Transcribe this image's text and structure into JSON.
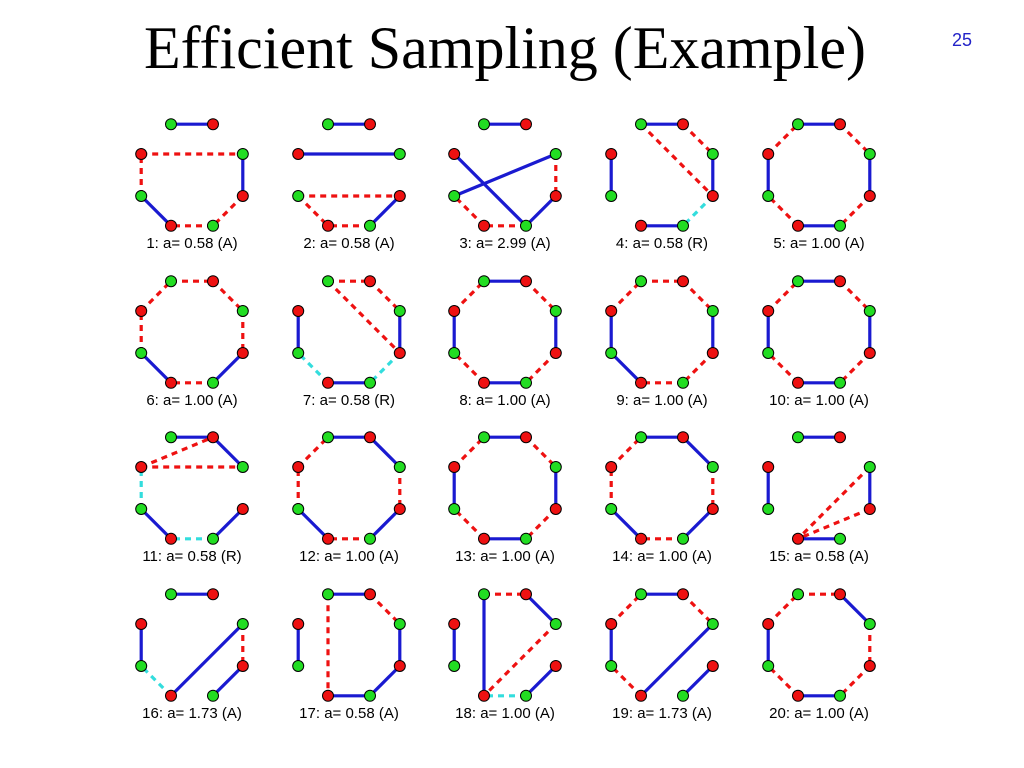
{
  "slide": {
    "title": "Efficient Sampling (Example)",
    "page_number": "25"
  },
  "colors": {
    "node_green": "#22dd22",
    "node_red": "#ee1111",
    "edge_solid": "#1a1ad0",
    "edge_dashed_red": "#ee1111",
    "edge_dashed_cyan": "#33dddd",
    "node_outline": "#000000"
  },
  "legend_semantics": {
    "nodes": 8,
    "node_colors": [
      "green",
      "red",
      "green",
      "red",
      "green",
      "red",
      "green",
      "red"
    ],
    "edge_codes": {
      "B": "solid blue",
      "R": "dashed red",
      "C": "dashed cyan"
    }
  },
  "samples": [
    {
      "label": "1: a= 0.58 (A)",
      "edges": [
        [
          "0",
          "1",
          "B"
        ],
        [
          "2",
          "3",
          "B"
        ],
        [
          "3",
          "4",
          "R"
        ],
        [
          "4",
          "5",
          "R"
        ],
        [
          "5",
          "6",
          "B"
        ],
        [
          "6",
          "7",
          "R"
        ],
        [
          "7",
          "2",
          "R"
        ]
      ]
    },
    {
      "label": "2: a= 0.58 (A)",
      "edges": [
        [
          "0",
          "1",
          "B"
        ],
        [
          "7",
          "2",
          "B"
        ],
        [
          "3",
          "4",
          "B"
        ],
        [
          "4",
          "5",
          "R"
        ],
        [
          "6",
          "5",
          "R"
        ],
        [
          "6",
          "3",
          "R"
        ]
      ]
    },
    {
      "label": "3: a= 2.99 (A)",
      "edges": [
        [
          "0",
          "1",
          "B"
        ],
        [
          "6",
          "2",
          "B"
        ],
        [
          "2",
          "3",
          "R"
        ],
        [
          "3",
          "4",
          "B"
        ],
        [
          "4",
          "5",
          "R"
        ],
        [
          "5",
          "6",
          "R"
        ],
        [
          "7",
          "4",
          "B"
        ]
      ]
    },
    {
      "label": "4: a= 0.58 (R)",
      "edges": [
        [
          "0",
          "1",
          "B"
        ],
        [
          "1",
          "2",
          "R"
        ],
        [
          "0",
          "3",
          "R"
        ],
        [
          "2",
          "3",
          "B"
        ],
        [
          "3",
          "4",
          "C"
        ],
        [
          "4",
          "5",
          "B"
        ],
        [
          "6",
          "7",
          "B"
        ]
      ]
    },
    {
      "label": "5: a= 1.00 (A)",
      "edges": [
        [
          "0",
          "1",
          "B"
        ],
        [
          "1",
          "2",
          "R"
        ],
        [
          "2",
          "3",
          "B"
        ],
        [
          "3",
          "4",
          "R"
        ],
        [
          "4",
          "5",
          "B"
        ],
        [
          "5",
          "6",
          "R"
        ],
        [
          "6",
          "7",
          "B"
        ],
        [
          "7",
          "0",
          "R"
        ]
      ]
    },
    {
      "label": "6: a= 1.00 (A)",
      "edges": [
        [
          "0",
          "1",
          "R"
        ],
        [
          "1",
          "2",
          "R"
        ],
        [
          "2",
          "3",
          "R"
        ],
        [
          "3",
          "4",
          "B"
        ],
        [
          "4",
          "5",
          "R"
        ],
        [
          "5",
          "6",
          "B"
        ],
        [
          "6",
          "7",
          "R"
        ],
        [
          "7",
          "0",
          "R"
        ]
      ]
    },
    {
      "label": "7: a= 0.58 (R)",
      "edges": [
        [
          "0",
          "1",
          "R"
        ],
        [
          "1",
          "2",
          "R"
        ],
        [
          "0",
          "3",
          "R"
        ],
        [
          "2",
          "3",
          "B"
        ],
        [
          "3",
          "4",
          "C"
        ],
        [
          "4",
          "5",
          "B"
        ],
        [
          "5",
          "6",
          "C"
        ],
        [
          "6",
          "7",
          "B"
        ]
      ]
    },
    {
      "label": "8: a= 1.00 (A)",
      "edges": [
        [
          "0",
          "1",
          "B"
        ],
        [
          "1",
          "2",
          "R"
        ],
        [
          "2",
          "3",
          "B"
        ],
        [
          "3",
          "4",
          "R"
        ],
        [
          "4",
          "5",
          "B"
        ],
        [
          "5",
          "6",
          "R"
        ],
        [
          "6",
          "7",
          "B"
        ],
        [
          "7",
          "0",
          "R"
        ]
      ]
    },
    {
      "label": "9: a= 1.00 (A)",
      "edges": [
        [
          "0",
          "1",
          "R"
        ],
        [
          "1",
          "2",
          "R"
        ],
        [
          "2",
          "3",
          "B"
        ],
        [
          "3",
          "4",
          "R"
        ],
        [
          "4",
          "5",
          "R"
        ],
        [
          "5",
          "6",
          "B"
        ],
        [
          "6",
          "7",
          "B"
        ],
        [
          "7",
          "0",
          "R"
        ]
      ]
    },
    {
      "label": "10: a= 1.00 (A)",
      "edges": [
        [
          "0",
          "1",
          "B"
        ],
        [
          "1",
          "2",
          "R"
        ],
        [
          "2",
          "3",
          "B"
        ],
        [
          "3",
          "4",
          "R"
        ],
        [
          "4",
          "5",
          "B"
        ],
        [
          "5",
          "6",
          "R"
        ],
        [
          "6",
          "7",
          "B"
        ],
        [
          "7",
          "0",
          "R"
        ]
      ]
    },
    {
      "label": "11: a= 0.58 (R)",
      "edges": [
        [
          "0",
          "1",
          "B"
        ],
        [
          "1",
          "2",
          "B"
        ],
        [
          "7",
          "1",
          "R"
        ],
        [
          "7",
          "2",
          "R"
        ],
        [
          "3",
          "4",
          "B"
        ],
        [
          "4",
          "5",
          "C"
        ],
        [
          "5",
          "6",
          "B"
        ],
        [
          "6",
          "7",
          "C"
        ]
      ]
    },
    {
      "label": "12: a= 1.00 (A)",
      "edges": [
        [
          "0",
          "1",
          "B"
        ],
        [
          "1",
          "2",
          "B"
        ],
        [
          "2",
          "3",
          "R"
        ],
        [
          "3",
          "4",
          "B"
        ],
        [
          "4",
          "5",
          "R"
        ],
        [
          "5",
          "6",
          "B"
        ],
        [
          "6",
          "7",
          "R"
        ],
        [
          "7",
          "0",
          "R"
        ]
      ]
    },
    {
      "label": "13: a= 1.00 (A)",
      "edges": [
        [
          "0",
          "1",
          "B"
        ],
        [
          "1",
          "2",
          "R"
        ],
        [
          "2",
          "3",
          "B"
        ],
        [
          "3",
          "4",
          "R"
        ],
        [
          "4",
          "5",
          "B"
        ],
        [
          "5",
          "6",
          "R"
        ],
        [
          "6",
          "7",
          "B"
        ],
        [
          "7",
          "0",
          "R"
        ]
      ]
    },
    {
      "label": "14: a= 1.00 (A)",
      "edges": [
        [
          "0",
          "1",
          "B"
        ],
        [
          "1",
          "2",
          "B"
        ],
        [
          "2",
          "3",
          "R"
        ],
        [
          "3",
          "4",
          "B"
        ],
        [
          "4",
          "5",
          "R"
        ],
        [
          "5",
          "6",
          "B"
        ],
        [
          "6",
          "7",
          "R"
        ],
        [
          "7",
          "0",
          "R"
        ]
      ]
    },
    {
      "label": "15: a= 0.58 (A)",
      "edges": [
        [
          "0",
          "1",
          "B"
        ],
        [
          "2",
          "3",
          "B"
        ],
        [
          "2",
          "5",
          "R"
        ],
        [
          "3",
          "5",
          "R"
        ],
        [
          "4",
          "5",
          "B"
        ],
        [
          "6",
          "7",
          "B"
        ]
      ]
    },
    {
      "label": "16: a= 1.73 (A)",
      "edges": [
        [
          "0",
          "1",
          "B"
        ],
        [
          "2",
          "5",
          "B"
        ],
        [
          "2",
          "3",
          "R"
        ],
        [
          "3",
          "4",
          "B"
        ],
        [
          "5",
          "6",
          "C"
        ],
        [
          "6",
          "7",
          "B"
        ]
      ]
    },
    {
      "label": "17: a= 0.58 (A)",
      "edges": [
        [
          "0",
          "1",
          "B"
        ],
        [
          "1",
          "2",
          "R"
        ],
        [
          "2",
          "3",
          "B"
        ],
        [
          "3",
          "4",
          "B"
        ],
        [
          "0",
          "5",
          "R"
        ],
        [
          "4",
          "5",
          "B"
        ],
        [
          "6",
          "7",
          "B"
        ]
      ]
    },
    {
      "label": "18: a= 1.00 (A)",
      "edges": [
        [
          "0",
          "1",
          "R"
        ],
        [
          "1",
          "2",
          "B"
        ],
        [
          "2",
          "5",
          "R"
        ],
        [
          "0",
          "5",
          "B"
        ],
        [
          "4",
          "5",
          "C"
        ],
        [
          "3",
          "4",
          "B"
        ],
        [
          "6",
          "7",
          "B"
        ]
      ]
    },
    {
      "label": "19: a= 1.73 (A)",
      "edges": [
        [
          "0",
          "1",
          "B"
        ],
        [
          "1",
          "2",
          "R"
        ],
        [
          "2",
          "5",
          "B"
        ],
        [
          "3",
          "4",
          "B"
        ],
        [
          "5",
          "6",
          "R"
        ],
        [
          "6",
          "7",
          "B"
        ],
        [
          "7",
          "0",
          "R"
        ]
      ]
    },
    {
      "label": "20: a= 1.00 (A)",
      "edges": [
        [
          "0",
          "1",
          "R"
        ],
        [
          "1",
          "2",
          "B"
        ],
        [
          "2",
          "3",
          "R"
        ],
        [
          "3",
          "4",
          "R"
        ],
        [
          "4",
          "5",
          "B"
        ],
        [
          "5",
          "6",
          "R"
        ],
        [
          "6",
          "7",
          "B"
        ],
        [
          "7",
          "0",
          "R"
        ]
      ]
    }
  ]
}
